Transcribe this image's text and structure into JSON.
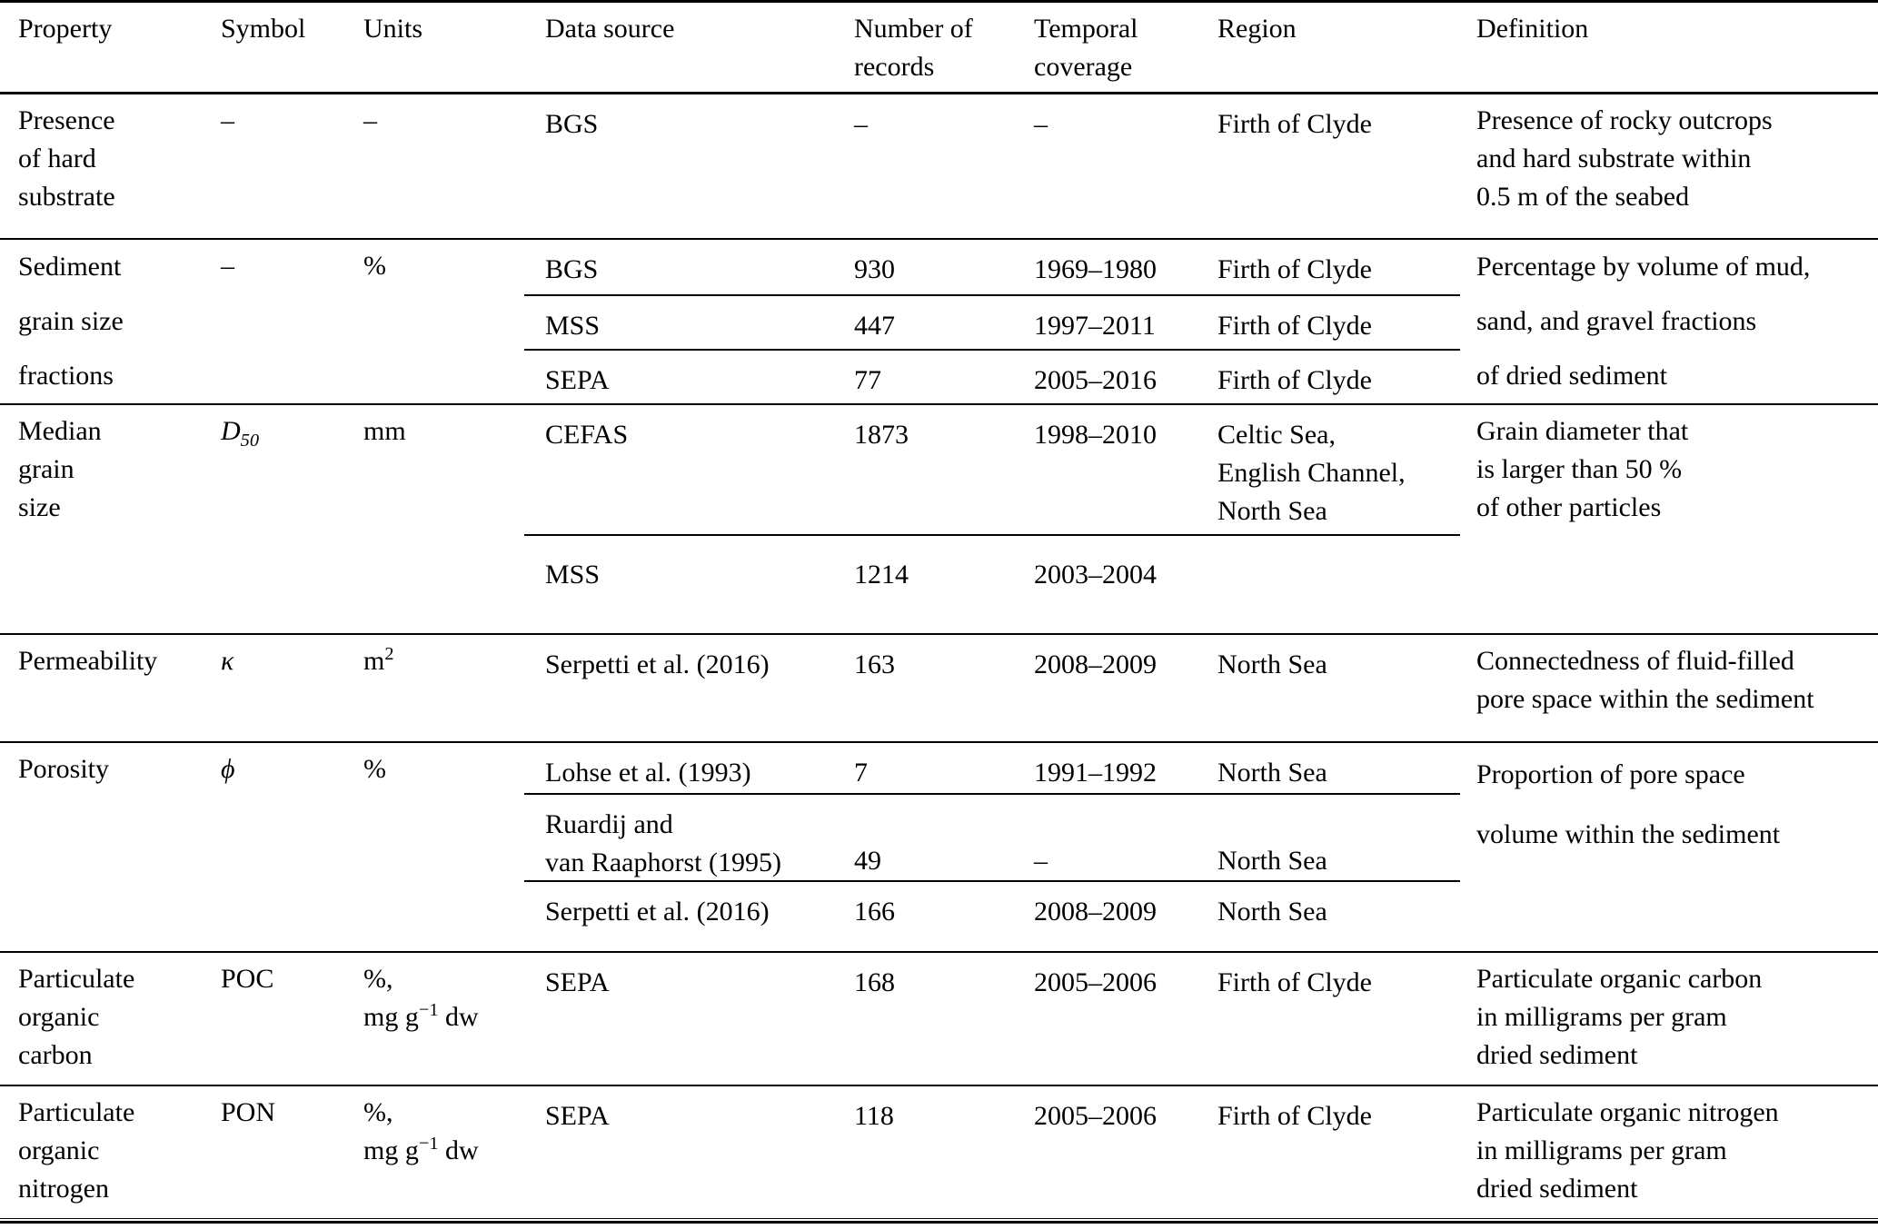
{
  "table": {
    "headers": {
      "property": "Property",
      "symbol": "Symbol",
      "units": "Units",
      "data_source": "Data source",
      "records": "Number of\nrecords",
      "temporal": "Temporal\ncoverage",
      "region": "Region",
      "definition": "Definition"
    },
    "groups": [
      {
        "property": "Presence\nof hard\nsubstrate",
        "symbol": "–",
        "units": "–",
        "definition": "Presence of rocky outcrops\nand hard substrate within\n0.5 m of the seabed",
        "sources": [
          {
            "name": "BGS",
            "records": "–",
            "temporal": "–",
            "region": "Firth of Clyde"
          }
        ]
      },
      {
        "property": "Sediment\ngrain size\nfractions",
        "symbol": "–",
        "units": "%",
        "definition": "Percentage by volume of mud,\nsand, and gravel fractions\nof dried sediment",
        "sources": [
          {
            "name": "BGS",
            "records": "930",
            "temporal": "1969–1980",
            "region": "Firth of Clyde"
          },
          {
            "name": "MSS",
            "records": "447",
            "temporal": "1997–2011",
            "region": "Firth of Clyde"
          },
          {
            "name": "SEPA",
            "records": "77",
            "temporal": "2005–2016",
            "region": "Firth of Clyde"
          }
        ]
      },
      {
        "property": "Median\ngrain\nsize",
        "symbol": "D_{50}",
        "units": "mm",
        "definition": "Grain diameter that\nis larger than 50 %\nof other particles",
        "sources": [
          {
            "name": "CEFAS",
            "records": "1873",
            "temporal": "1998–2010",
            "region": "Celtic Sea,\nEnglish Channel,\nNorth Sea"
          },
          {
            "name": "MSS",
            "records": "1214",
            "temporal": "2003–2004",
            "region": ""
          }
        ]
      },
      {
        "property": "Permeability",
        "symbol": "κ",
        "units": "m^{2}",
        "definition": "Connectedness of fluid-filled\npore space within the sediment",
        "sources": [
          {
            "name": "Serpetti et al. (2016)",
            "records": "163",
            "temporal": "2008–2009",
            "region": "North Sea"
          }
        ]
      },
      {
        "property": "Porosity",
        "symbol": "ϕ",
        "units": "%",
        "definition": "Proportion of pore space\nvolume within the sediment",
        "sources": [
          {
            "name": "Lohse et al. (1993)",
            "records": "7",
            "temporal": "1991–1992",
            "region": "North Sea"
          },
          {
            "name": "Ruardij and\nvan Raaphorst (1995)",
            "records": "49",
            "temporal": "–",
            "region": "North Sea"
          },
          {
            "name": "Serpetti et al. (2016)",
            "records": "166",
            "temporal": "2008–2009",
            "region": "North Sea"
          }
        ]
      },
      {
        "property": "Particulate\norganic\ncarbon",
        "symbol": "POC",
        "units": "%,\nmg g^{−1} dw",
        "definition": "Particulate organic carbon\nin milligrams per gram\ndried sediment",
        "sources": [
          {
            "name": "SEPA",
            "records": "168",
            "temporal": "2005–2006",
            "region": "Firth of Clyde"
          }
        ]
      },
      {
        "property": "Particulate\norganic\nnitrogen",
        "symbol": "PON",
        "units": "%,\nmg g^{−1} dw",
        "definition": "Particulate organic nitrogen\nin milligrams per gram\ndried sediment",
        "sources": [
          {
            "name": "SEPA",
            "records": "118",
            "temporal": "2005–2006",
            "region": "Firth of Clyde"
          }
        ]
      }
    ]
  }
}
